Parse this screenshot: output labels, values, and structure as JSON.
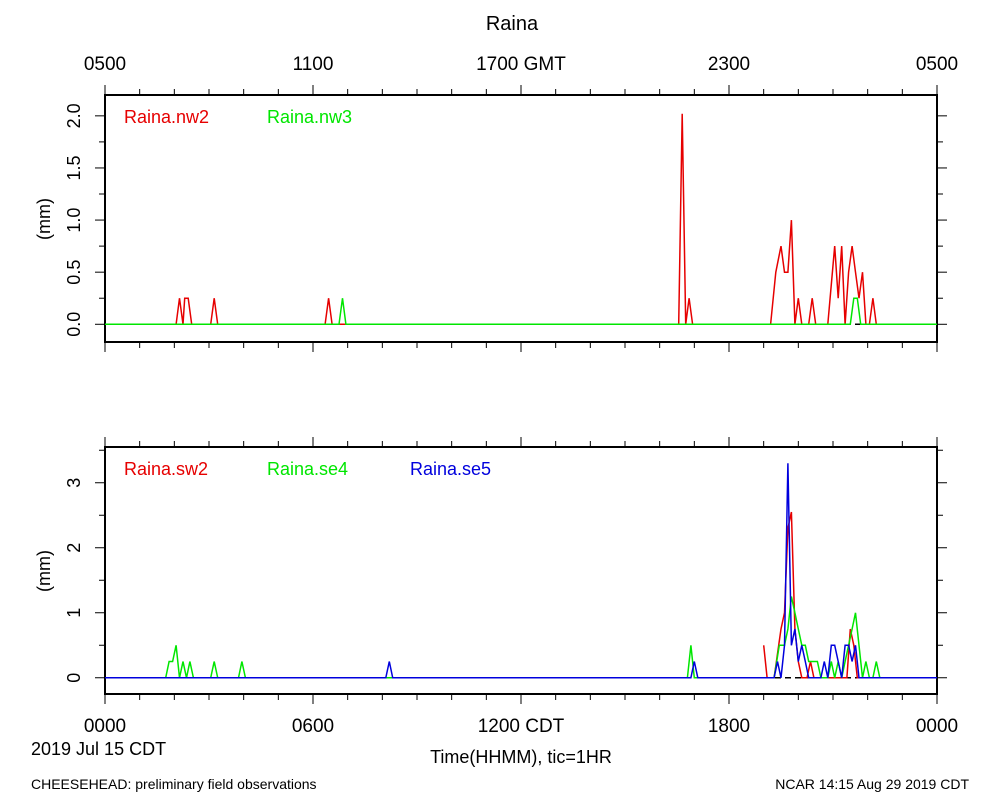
{
  "title": "Raina",
  "top_axis_ticks": [
    "0500",
    "1100",
    "1700 GMT",
    "2300",
    "0500"
  ],
  "bottom_axis_ticks": [
    "0000",
    "0600",
    "1200 CDT",
    "1800",
    "0000"
  ],
  "date_label": "2019 Jul 15 CDT",
  "xlabel": "Time(HHMM), tic=1HR",
  "footer_left": "CHEESEHEAD: preliminary field observations",
  "footer_right": "NCAR 14:15 Aug 29 2019 CDT",
  "colors": {
    "red": "#e60000",
    "green": "#00e600",
    "blue": "#0000dd",
    "axis": "#000000"
  },
  "chart_data": [
    {
      "type": "line",
      "ylabel": "(mm)",
      "xlim": [
        0,
        24
      ],
      "ylim": [
        -0.17,
        2.2
      ],
      "yticks": [
        "0.0",
        "0.5",
        "1.0",
        "1.5",
        "2.0"
      ],
      "x_unit": "hours since 0000 CDT",
      "series": [
        {
          "name": "Raina.nw2",
          "color": "#e60000",
          "points": [
            [
              0,
              0
            ],
            [
              2.05,
              0
            ],
            [
              2.15,
              0.25
            ],
            [
              2.25,
              0
            ],
            [
              2.3,
              0.25
            ],
            [
              2.4,
              0.25
            ],
            [
              2.5,
              0
            ],
            [
              3.05,
              0
            ],
            [
              3.15,
              0.25
            ],
            [
              3.25,
              0
            ],
            [
              6.35,
              0
            ],
            [
              6.45,
              0.25
            ],
            [
              6.55,
              0
            ],
            [
              16.55,
              0
            ],
            [
              16.65,
              2.02
            ],
            [
              16.75,
              0
            ],
            [
              16.85,
              0.25
            ],
            [
              16.95,
              0
            ],
            [
              19.2,
              0
            ],
            [
              19.35,
              0.5
            ],
            [
              19.5,
              0.75
            ],
            [
              19.6,
              0.5
            ],
            [
              19.7,
              0.5
            ],
            [
              19.8,
              1.0
            ],
            [
              19.9,
              0
            ],
            [
              20.0,
              0.25
            ],
            [
              20.1,
              0
            ],
            [
              20.3,
              0
            ],
            [
              20.4,
              0.25
            ],
            [
              20.5,
              0
            ],
            [
              20.85,
              0
            ],
            [
              21.05,
              0.75
            ],
            [
              21.15,
              0.25
            ],
            [
              21.25,
              0.75
            ],
            [
              21.35,
              0
            ],
            [
              21.45,
              0.5
            ],
            [
              21.55,
              0.75
            ],
            [
              21.65,
              0.5
            ],
            [
              21.75,
              0.25
            ],
            [
              21.85,
              0.5
            ],
            [
              21.95,
              0
            ],
            [
              22.05,
              0
            ],
            [
              22.15,
              0.25
            ],
            [
              22.25,
              0
            ],
            [
              24,
              0
            ]
          ]
        },
        {
          "name": "Raina.nw3",
          "color": "#00e600",
          "points": [
            [
              0,
              0
            ],
            [
              6.75,
              0
            ],
            [
              6.85,
              0.25
            ],
            [
              6.95,
              0
            ],
            [
              21.5,
              0
            ],
            [
              21.6,
              0.25
            ],
            [
              21.7,
              0.25
            ],
            [
              21.8,
              0
            ],
            [
              24,
              0
            ]
          ]
        }
      ]
    },
    {
      "type": "line",
      "ylabel": "(mm)",
      "xlim": [
        0,
        24
      ],
      "ylim": [
        -0.25,
        3.55
      ],
      "yticks": [
        "0",
        "1",
        "2",
        "3"
      ],
      "x_unit": "hours since 0000 CDT",
      "series": [
        {
          "name": "Raina.sw2",
          "color": "#e60000",
          "points": [
            [
              19.0,
              0.5
            ],
            [
              19.1,
              0
            ],
            [
              19.3,
              0
            ],
            [
              19.5,
              0.75
            ],
            [
              19.6,
              1.0
            ],
            [
              19.7,
              2.3
            ],
            [
              19.8,
              2.55
            ],
            [
              19.9,
              0.75
            ],
            [
              20.0,
              0.25
            ],
            [
              20.1,
              0
            ],
            [
              20.25,
              0
            ],
            [
              20.35,
              0.25
            ],
            [
              20.45,
              0
            ],
            [
              21.4,
              0
            ],
            [
              21.5,
              0.75
            ],
            [
              21.6,
              0.5
            ],
            [
              21.7,
              0
            ],
            [
              24,
              0
            ]
          ]
        },
        {
          "name": "Raina.se4",
          "color": "#00e600",
          "points": [
            [
              0,
              0
            ],
            [
              1.75,
              0
            ],
            [
              1.85,
              0.25
            ],
            [
              1.95,
              0.25
            ],
            [
              2.05,
              0.5
            ],
            [
              2.15,
              0
            ],
            [
              2.25,
              0.25
            ],
            [
              2.35,
              0
            ],
            [
              2.45,
              0.25
            ],
            [
              2.55,
              0
            ],
            [
              3.05,
              0
            ],
            [
              3.15,
              0.25
            ],
            [
              3.25,
              0
            ],
            [
              3.85,
              0
            ],
            [
              3.95,
              0.25
            ],
            [
              4.05,
              0
            ],
            [
              16.8,
              0
            ],
            [
              16.9,
              0.5
            ],
            [
              17.0,
              0
            ],
            [
              19.3,
              0
            ],
            [
              19.45,
              0.5
            ],
            [
              19.6,
              0.5
            ],
            [
              19.7,
              0.75
            ],
            [
              19.8,
              1.25
            ],
            [
              19.9,
              1.0
            ],
            [
              20.0,
              0.75
            ],
            [
              20.1,
              0.5
            ],
            [
              20.2,
              0.5
            ],
            [
              20.3,
              0.25
            ],
            [
              20.45,
              0.25
            ],
            [
              20.55,
              0.25
            ],
            [
              20.65,
              0
            ],
            [
              20.85,
              0
            ],
            [
              20.95,
              0.25
            ],
            [
              21.05,
              0
            ],
            [
              21.15,
              0.25
            ],
            [
              21.25,
              0
            ],
            [
              21.35,
              0.25
            ],
            [
              21.45,
              0.5
            ],
            [
              21.55,
              0.75
            ],
            [
              21.65,
              1.0
            ],
            [
              21.75,
              0.5
            ],
            [
              21.85,
              0
            ],
            [
              21.95,
              0.25
            ],
            [
              22.05,
              0
            ],
            [
              22.15,
              0
            ],
            [
              22.25,
              0.25
            ],
            [
              22.35,
              0
            ],
            [
              24,
              0
            ]
          ]
        },
        {
          "name": "Raina.se5",
          "color": "#0000dd",
          "points": [
            [
              0,
              0
            ],
            [
              8.1,
              0
            ],
            [
              8.2,
              0.25
            ],
            [
              8.3,
              0
            ],
            [
              16.9,
              0
            ],
            [
              17.0,
              0.25
            ],
            [
              17.1,
              0
            ],
            [
              19.3,
              0
            ],
            [
              19.4,
              0.25
            ],
            [
              19.5,
              0
            ],
            [
              19.6,
              0.5
            ],
            [
              19.7,
              3.3
            ],
            [
              19.8,
              0.5
            ],
            [
              19.9,
              0.75
            ],
            [
              20.0,
              0.25
            ],
            [
              20.1,
              0.5
            ],
            [
              20.2,
              0.25
            ],
            [
              20.3,
              0
            ],
            [
              20.65,
              0
            ],
            [
              20.75,
              0.25
            ],
            [
              20.85,
              0
            ],
            [
              20.95,
              0.5
            ],
            [
              21.05,
              0.5
            ],
            [
              21.15,
              0.25
            ],
            [
              21.25,
              0
            ],
            [
              21.35,
              0.5
            ],
            [
              21.45,
              0.5
            ],
            [
              21.55,
              0.25
            ],
            [
              21.65,
              0.5
            ],
            [
              21.75,
              0
            ],
            [
              24,
              0
            ]
          ]
        }
      ]
    }
  ]
}
